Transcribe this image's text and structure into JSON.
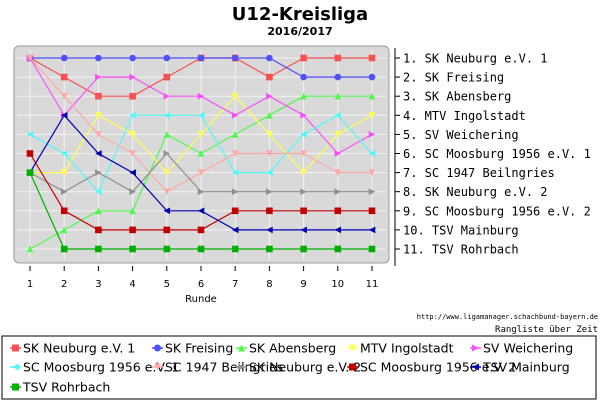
{
  "chart_data": {
    "type": "line",
    "title": "U12-Kreisliga",
    "subtitle": "2016/2017",
    "xlabel": "Runde",
    "ylabel": "",
    "x": [
      1,
      2,
      3,
      4,
      5,
      6,
      7,
      8,
      9,
      10,
      11
    ],
    "xlim": [
      0.6,
      11.4
    ],
    "ylim": [
      0.6,
      11.4
    ],
    "y_inverted": true,
    "grid": true,
    "source_url": "http://www.ligamanager.schachbund-bayern.de",
    "caption": "Rangliste über Zeit",
    "right_labels": [
      "1. SK Neuburg e.V. 1",
      "2. SK Freising",
      "3. SK Abensberg",
      "4. MTV Ingolstadt",
      "5. SV Weichering",
      "6. SC Moosburg 1956 e.V. 1",
      "7. SC 1947 Beilngries",
      "8. SK Neuburg e.V. 2",
      "9. SC Moosburg 1956 e.V. 2",
      "10. TSV Mainburg",
      "11. TSV Rohrbach"
    ],
    "series": [
      {
        "name": "SK Neuburg e.V. 1",
        "color": "#f85050",
        "marker": "square",
        "values": [
          1,
          2,
          3,
          3,
          2,
          1,
          1,
          2,
          1,
          1,
          1
        ]
      },
      {
        "name": "SK Freising",
        "color": "#5050f8",
        "marker": "circle",
        "values": [
          1,
          1,
          1,
          1,
          1,
          1,
          1,
          1,
          2,
          2,
          2
        ]
      },
      {
        "name": "SK Abensberg",
        "color": "#50f850",
        "marker": "triangle-up",
        "values": [
          11,
          10,
          9,
          9,
          5,
          6,
          5,
          4,
          3,
          3,
          3
        ]
      },
      {
        "name": "MTV Ingolstadt",
        "color": "#ffff50",
        "marker": "triangle-down",
        "values": [
          7,
          7,
          4,
          5,
          7,
          5,
          3,
          5,
          7,
          5,
          4
        ]
      },
      {
        "name": "SV Weichering",
        "color": "#f850f8",
        "marker": "triangle-right",
        "values": [
          1,
          4,
          2,
          2,
          3,
          3,
          4,
          3,
          4,
          6,
          5
        ]
      },
      {
        "name": "SC Moosburg 1956 e.V. 1",
        "color": "#50f8f8",
        "marker": "triangle-left",
        "values": [
          5,
          6,
          8,
          4,
          4,
          4,
          7,
          7,
          5,
          4,
          6
        ]
      },
      {
        "name": "SC 1947 Beilngries",
        "color": "#ffa8a8",
        "marker": "triangle-down",
        "values": [
          1,
          3,
          5,
          6,
          8,
          7,
          6,
          6,
          6,
          7,
          7
        ]
      },
      {
        "name": "SK Neuburg e.V. 2",
        "color": "#909090",
        "marker": "triangle-right",
        "values": [
          7,
          8,
          7,
          8,
          6,
          8,
          8,
          8,
          8,
          8,
          8
        ]
      },
      {
        "name": "SC Moosburg 1956 e.V. 2",
        "color": "#c00000",
        "marker": "square",
        "values": [
          6,
          9,
          10,
          10,
          10,
          10,
          9,
          9,
          9,
          9,
          9
        ]
      },
      {
        "name": "TSV Mainburg",
        "color": "#0000b0",
        "marker": "triangle-left",
        "values": [
          7,
          4,
          6,
          7,
          9,
          9,
          10,
          10,
          10,
          10,
          10
        ]
      },
      {
        "name": "TSV Rohrbach",
        "color": "#00b000",
        "marker": "square",
        "values": [
          7,
          11,
          11,
          11,
          11,
          11,
          11,
          11,
          11,
          11,
          11
        ]
      }
    ]
  }
}
